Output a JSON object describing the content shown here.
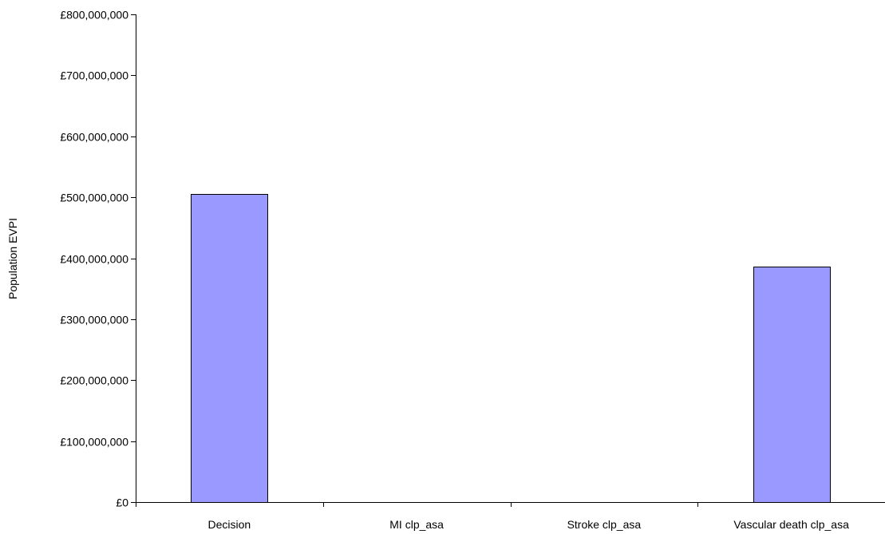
{
  "chart_data": {
    "type": "bar",
    "categories": [
      "Decision",
      "MI clp_asa",
      "Stroke clp_asa",
      "Vascular death clp_asa"
    ],
    "values": [
      505000000,
      0,
      0,
      386000000
    ],
    "title": "",
    "xlabel": "",
    "ylabel": "Population EVPI",
    "ylim": [
      0,
      800000000
    ],
    "yticks": [
      0,
      100000000,
      200000000,
      300000000,
      400000000,
      500000000,
      600000000,
      700000000,
      800000000
    ],
    "ytick_labels": [
      "£0",
      "£100,000,000",
      "£200,000,000",
      "£300,000,000",
      "£400,000,000",
      "£500,000,000",
      "£600,000,000",
      "£700,000,000",
      "£800,000,000"
    ],
    "grid": false,
    "legend": "none",
    "bar_color": "#9999ff",
    "bar_edge_color": "#000000"
  }
}
